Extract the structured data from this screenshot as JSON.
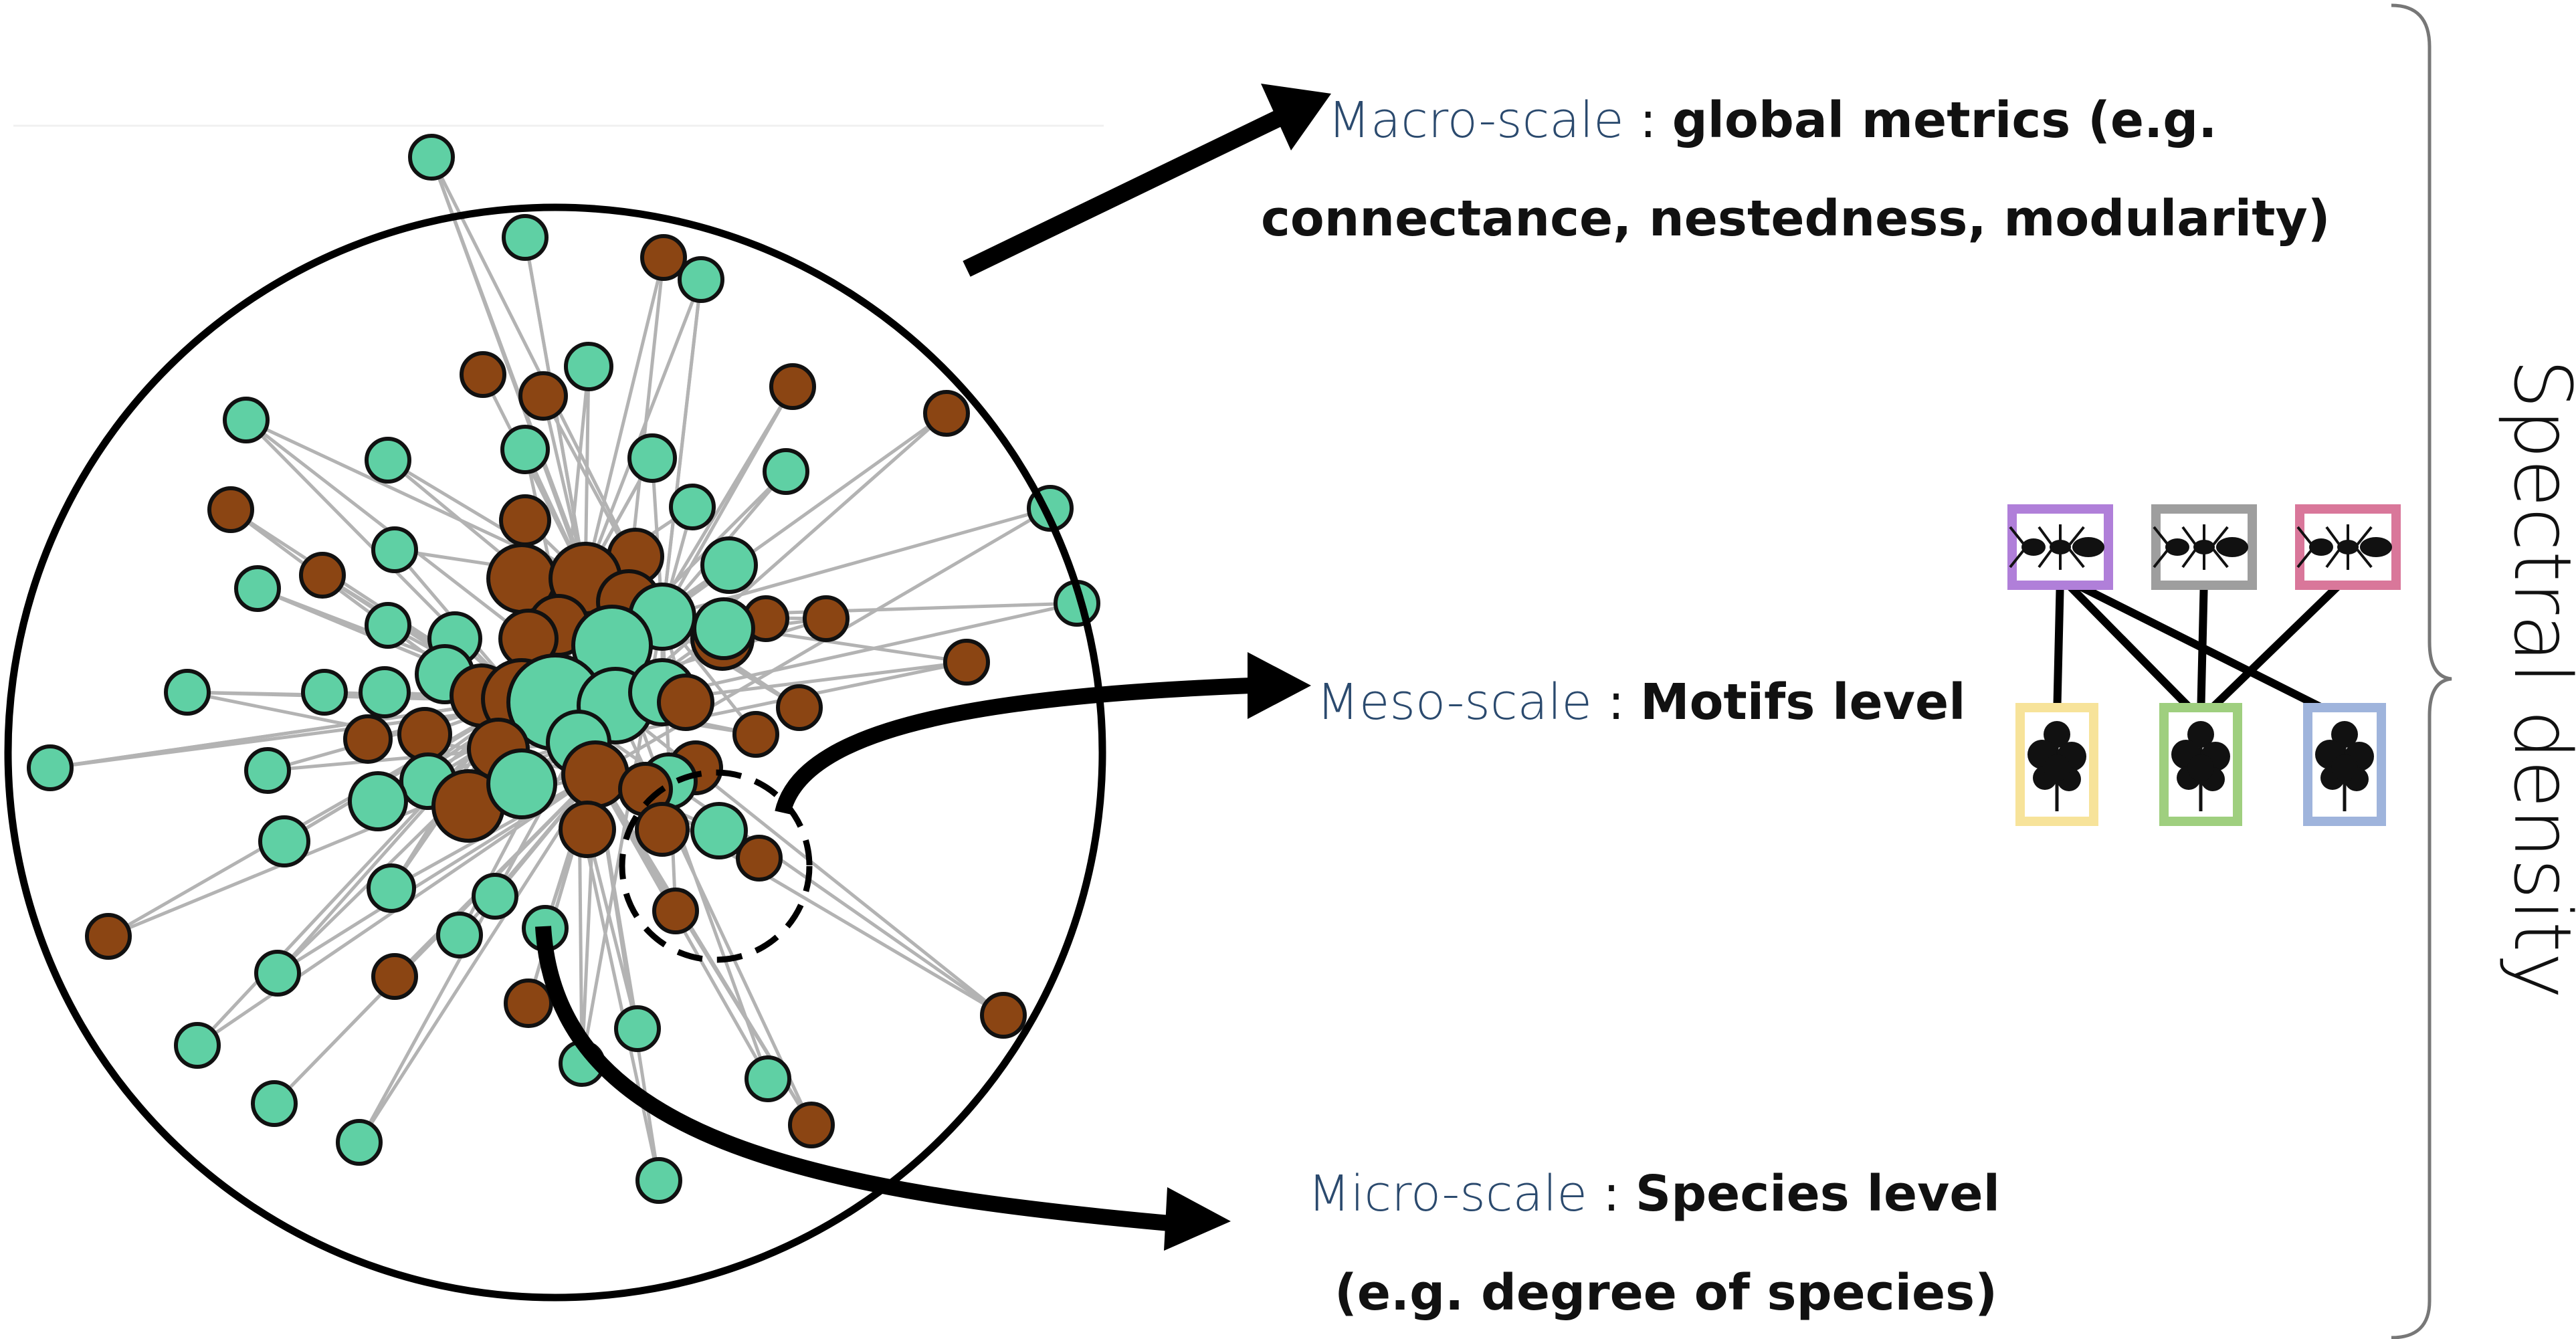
{
  "labels": {
    "macro": {
      "scale": "Macro-scale",
      "sep": " : ",
      "desc_line1": "global metrics  (e.g.",
      "desc_line2": "connectance, nestedness, modularity)"
    },
    "meso": {
      "scale": "Meso-scale",
      "sep": " : ",
      "desc": "Motifs level"
    },
    "micro": {
      "scale": "Micro-scale",
      "sep": " : ",
      "desc_line1": "Species level",
      "desc_line2": "(e.g. degree of species)"
    },
    "side": "Spectral density"
  },
  "colors": {
    "scale_label": "#2b4a6e",
    "text": "#111111",
    "node_green": "#5fd0a4",
    "node_brown": "#8b4513",
    "edge": "#b3b3b3",
    "ant_boxes": [
      "#b07fd9",
      "#9e9e9e",
      "#d9779a"
    ],
    "plant_boxes": [
      "#f7e39a",
      "#9fcf7f",
      "#9fb4dc"
    ]
  },
  "icons": {
    "insect": "ant-icon",
    "plant": "plant-icon"
  }
}
